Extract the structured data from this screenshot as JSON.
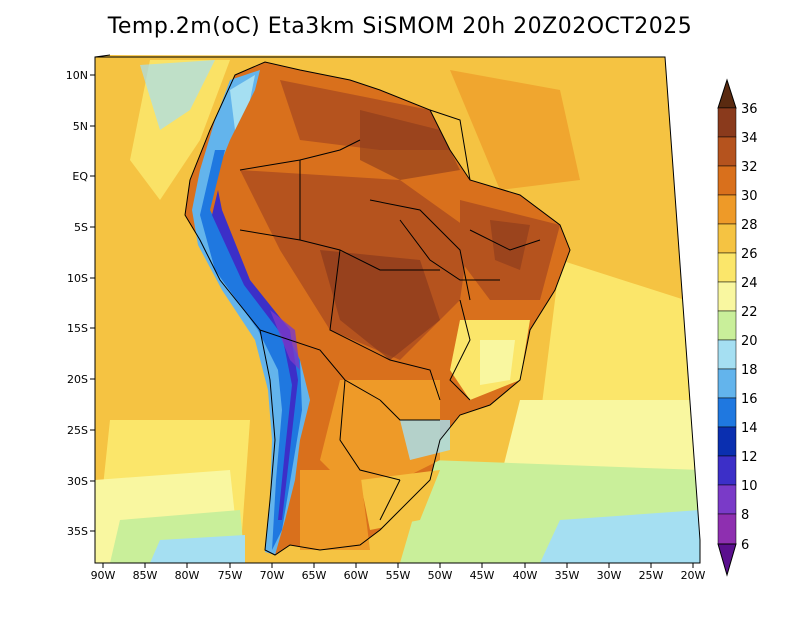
{
  "title": "Temp.2m(oC) Eta3km SiSMOM 20h 20Z02OCT2025",
  "map": {
    "lat_ticks": [
      "10N",
      "5N",
      "EQ",
      "5S",
      "10S",
      "15S",
      "20S",
      "25S",
      "30S",
      "35S"
    ],
    "lon_ticks": [
      "90W",
      "85W",
      "80W",
      "75W",
      "70W",
      "65W",
      "60W",
      "55W",
      "50W",
      "45W",
      "40W",
      "35W",
      "30W",
      "25W",
      "20W"
    ]
  },
  "colorbar": {
    "labels": [
      "36",
      "34",
      "32",
      "30",
      "28",
      "26",
      "24",
      "22",
      "20",
      "18",
      "16",
      "14",
      "12",
      "10",
      "8",
      "6"
    ],
    "colors": [
      "#5a2a10",
      "#8a3a1c",
      "#b5531e",
      "#d9701c",
      "#ee9a28",
      "#f5c342",
      "#fbe66a",
      "#f9f7a0",
      "#c9ef9a",
      "#a5dff2",
      "#63b4ec",
      "#1f78e0",
      "#0a2fb0",
      "#3c2fc8",
      "#7a3ac8",
      "#5a0f8e"
    ]
  }
}
